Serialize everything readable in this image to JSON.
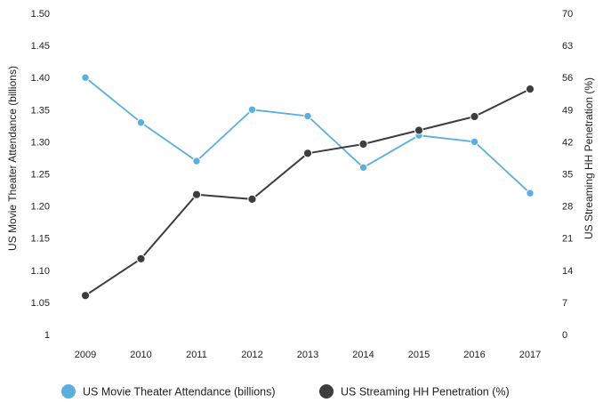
{
  "chart_data": {
    "type": "line",
    "categories": [
      "2009",
      "2010",
      "2011",
      "2012",
      "2013",
      "2014",
      "2015",
      "2016",
      "2017"
    ],
    "series": [
      {
        "name": "US Movie Theater Attendance (billions)",
        "axis": "left",
        "color": "#5aaee0",
        "values": [
          1.4,
          1.33,
          1.27,
          1.35,
          1.34,
          1.26,
          1.31,
          1.3,
          1.22
        ]
      },
      {
        "name": "US Streaming HH Penetration (%)",
        "axis": "right",
        "color": "#3d3d3d",
        "values": [
          8.5,
          16.5,
          30.5,
          29.5,
          39.5,
          41.5,
          44.5,
          47.5,
          53.5
        ]
      }
    ],
    "left_axis": {
      "label": "US Movie Theater Attendance (billions)",
      "range": [
        1.0,
        1.5
      ],
      "ticks": [
        "1.50",
        "1.45",
        "1.40",
        "1.35",
        "1.30",
        "1.25",
        "1.20",
        "1.15",
        "1.10",
        "1.05",
        "1"
      ],
      "tick_values": [
        1.5,
        1.45,
        1.4,
        1.35,
        1.3,
        1.25,
        1.2,
        1.15,
        1.1,
        1.05,
        1.0
      ]
    },
    "right_axis": {
      "label": "US Streaming HH Penetration (%)",
      "range": [
        0,
        70
      ],
      "ticks": [
        "70",
        "63",
        "56",
        "49",
        "42",
        "35",
        "28",
        "21",
        "14",
        "7",
        "0"
      ],
      "tick_values": [
        70,
        63,
        56,
        49,
        42,
        35,
        28,
        21,
        14,
        7,
        0
      ]
    },
    "legend": {
      "position": "bottom",
      "items": [
        "US Movie Theater Attendance (billions)",
        "US Streaming HH Penetration (%)"
      ]
    },
    "grid": false
  }
}
